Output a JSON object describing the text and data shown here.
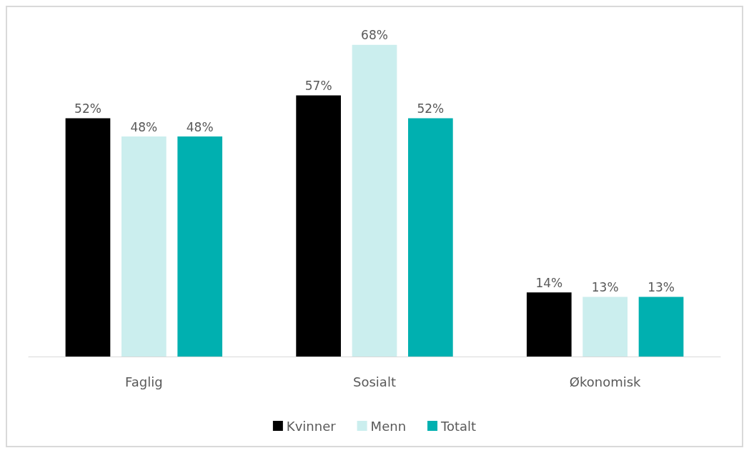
{
  "chart_data": {
    "type": "bar",
    "categories": [
      "Faglig",
      "Sosialt",
      "Økonomisk"
    ],
    "series": [
      {
        "name": "Kvinner",
        "color": "#000000",
        "values": [
          52,
          57,
          14
        ],
        "value_labels": [
          "52%",
          "57%",
          "14%"
        ]
      },
      {
        "name": "Menn",
        "color": "#cbeeee",
        "values": [
          48,
          68,
          13
        ],
        "value_labels": [
          "48%",
          "68%",
          "13%"
        ]
      },
      {
        "name": "Totalt",
        "color": "#00b0b0",
        "values": [
          48,
          52,
          13
        ],
        "value_labels": [
          "48%",
          "52%",
          "13%"
        ]
      }
    ],
    "legend": "bottom",
    "grid": false
  }
}
